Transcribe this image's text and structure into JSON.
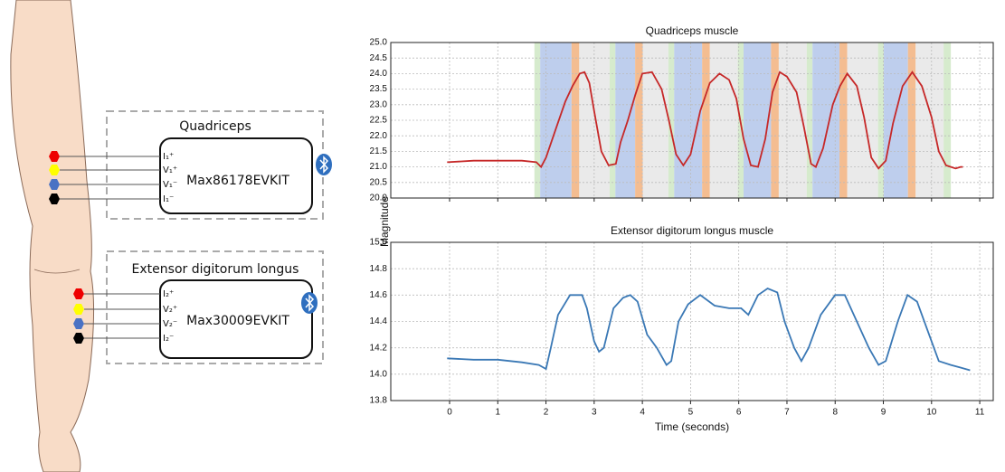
{
  "diagram": {
    "groups": [
      {
        "title": "Quadriceps",
        "device": "Max86178EVKIT",
        "pins": [
          "I₁⁺",
          "V₁⁺",
          "V₁⁻",
          "I₁⁻"
        ]
      },
      {
        "title": "Extensor digitorum longus",
        "device": "Max30009EVKIT",
        "pins": [
          "I₂⁺",
          "V₂⁺",
          "V₂⁻",
          "I₂⁻"
        ]
      }
    ]
  },
  "chart_data": [
    {
      "type": "line",
      "title": "Quadriceps muscle",
      "ylabel": "Magnitude",
      "xlim": [
        -1.22,
        11.28
      ],
      "ylim": [
        20,
        25
      ],
      "xticks": [
        0,
        1,
        2,
        3,
        4,
        5,
        6,
        7,
        8,
        9,
        10,
        11
      ],
      "show_xtick_labels": false,
      "yticks": [
        {
          "value": 20,
          "label": "20.0"
        },
        20.5,
        {
          "value": 21,
          "label": "21.0"
        },
        21.5,
        {
          "value": 22,
          "label": "22.0"
        },
        22.5,
        {
          "value": 23,
          "label": "23.0"
        },
        23.5,
        {
          "value": 24,
          "label": "24.0"
        },
        24.5,
        {
          "value": 25,
          "label": "25.0"
        }
      ],
      "grid": true,
      "bands": [
        {
          "start": 1.76,
          "end": 1.88,
          "color": "#cfe8c4"
        },
        {
          "start": 1.88,
          "end": 2.53,
          "color": "#b3c6ea"
        },
        {
          "start": 2.53,
          "end": 2.69,
          "color": "#f2b27e"
        },
        {
          "start": 2.69,
          "end": 3.32,
          "color": "#e6e6e6"
        },
        {
          "start": 3.32,
          "end": 3.44,
          "color": "#cfe8c4"
        },
        {
          "start": 3.44,
          "end": 3.85,
          "color": "#b3c6ea"
        },
        {
          "start": 3.85,
          "end": 4.01,
          "color": "#f2b27e"
        },
        {
          "start": 4.01,
          "end": 4.54,
          "color": "#e6e6e6"
        },
        {
          "start": 4.54,
          "end": 4.66,
          "color": "#cfe8c4"
        },
        {
          "start": 4.66,
          "end": 5.24,
          "color": "#b3c6ea"
        },
        {
          "start": 5.24,
          "end": 5.4,
          "color": "#f2b27e"
        },
        {
          "start": 5.4,
          "end": 5.98,
          "color": "#e6e6e6"
        },
        {
          "start": 5.98,
          "end": 6.1,
          "color": "#cfe8c4"
        },
        {
          "start": 6.1,
          "end": 6.67,
          "color": "#b3c6ea"
        },
        {
          "start": 6.67,
          "end": 6.83,
          "color": "#f2b27e"
        },
        {
          "start": 6.83,
          "end": 7.41,
          "color": "#e6e6e6"
        },
        {
          "start": 7.41,
          "end": 7.53,
          "color": "#cfe8c4"
        },
        {
          "start": 7.53,
          "end": 8.09,
          "color": "#b3c6ea"
        },
        {
          "start": 8.09,
          "end": 8.25,
          "color": "#f2b27e"
        },
        {
          "start": 8.25,
          "end": 8.89,
          "color": "#e6e6e6"
        },
        {
          "start": 8.89,
          "end": 9.01,
          "color": "#cfe8c4"
        },
        {
          "start": 9.01,
          "end": 9.51,
          "color": "#b3c6ea"
        },
        {
          "start": 9.51,
          "end": 9.67,
          "color": "#f2b27e"
        },
        {
          "start": 9.67,
          "end": 10.25,
          "color": "#e6e6e6"
        },
        {
          "start": 10.25,
          "end": 10.4,
          "color": "#cfe8c4"
        }
      ],
      "x": [
        -0.05,
        0.5,
        1.0,
        1.5,
        1.8,
        1.9,
        2.0,
        2.2,
        2.4,
        2.55,
        2.7,
        2.8,
        2.9,
        3.0,
        3.15,
        3.3,
        3.45,
        3.55,
        3.7,
        3.85,
        4.0,
        4.2,
        4.4,
        4.55,
        4.7,
        4.85,
        5.0,
        5.2,
        5.4,
        5.6,
        5.8,
        5.95,
        6.1,
        6.25,
        6.4,
        6.55,
        6.7,
        6.85,
        7.0,
        7.2,
        7.35,
        7.5,
        7.6,
        7.75,
        7.95,
        8.1,
        8.25,
        8.45,
        8.6,
        8.75,
        8.9,
        9.05,
        9.2,
        9.4,
        9.6,
        9.8,
        10.0,
        10.15,
        10.3,
        10.5,
        10.6,
        10.65
      ],
      "series": [
        {
          "color": "#c62828",
          "values": [
            21.15,
            21.2,
            21.2,
            21.2,
            21.15,
            21.0,
            21.3,
            22.2,
            23.1,
            23.6,
            24.0,
            24.05,
            23.7,
            22.8,
            21.5,
            21.05,
            21.1,
            21.8,
            22.5,
            23.3,
            24.0,
            24.05,
            23.5,
            22.5,
            21.4,
            21.05,
            21.4,
            22.8,
            23.7,
            24.0,
            23.8,
            23.2,
            21.9,
            21.05,
            21.0,
            21.9,
            23.4,
            24.05,
            23.9,
            23.4,
            22.3,
            21.1,
            21.0,
            21.6,
            23.0,
            23.6,
            24.0,
            23.6,
            22.6,
            21.3,
            20.95,
            21.2,
            22.4,
            23.6,
            24.05,
            23.6,
            22.6,
            21.5,
            21.05,
            20.95,
            21.0,
            21.0
          ]
        }
      ]
    },
    {
      "type": "line",
      "title": "Extensor digitorum longus muscle",
      "xlabel": "Time (seconds)",
      "xlim": [
        -1.22,
        11.28
      ],
      "ylim": [
        13.8,
        15
      ],
      "xticks": [
        0,
        1,
        2,
        3,
        4,
        5,
        6,
        7,
        8,
        9,
        10,
        11
      ],
      "show_xtick_labels": true,
      "yticks": [
        13.8,
        {
          "value": 14,
          "label": "14.0"
        },
        14.2,
        14.4,
        14.6,
        14.8,
        {
          "value": 15,
          "label": "15.0"
        }
      ],
      "grid": true,
      "x": [
        -0.05,
        0.5,
        1.0,
        1.5,
        1.85,
        2.0,
        2.1,
        2.25,
        2.5,
        2.75,
        2.85,
        3.0,
        3.1,
        3.2,
        3.4,
        3.6,
        3.75,
        3.9,
        4.1,
        4.3,
        4.5,
        4.6,
        4.75,
        4.95,
        5.2,
        5.5,
        5.8,
        6.05,
        6.2,
        6.4,
        6.6,
        6.8,
        6.95,
        7.15,
        7.3,
        7.45,
        7.7,
        8.0,
        8.2,
        8.45,
        8.7,
        8.9,
        9.05,
        9.3,
        9.5,
        9.7,
        9.95,
        10.15,
        10.4,
        10.6,
        10.8
      ],
      "series": [
        {
          "color": "#3a78b5",
          "values": [
            14.12,
            14.11,
            14.11,
            14.09,
            14.07,
            14.04,
            14.2,
            14.45,
            14.6,
            14.6,
            14.5,
            14.25,
            14.17,
            14.2,
            14.5,
            14.58,
            14.6,
            14.55,
            14.3,
            14.2,
            14.07,
            14.1,
            14.4,
            14.53,
            14.6,
            14.52,
            14.5,
            14.5,
            14.45,
            14.6,
            14.65,
            14.62,
            14.4,
            14.2,
            14.1,
            14.2,
            14.45,
            14.6,
            14.6,
            14.4,
            14.2,
            14.07,
            14.1,
            14.4,
            14.6,
            14.55,
            14.3,
            14.1,
            14.07,
            14.05,
            14.03
          ]
        }
      ]
    }
  ]
}
